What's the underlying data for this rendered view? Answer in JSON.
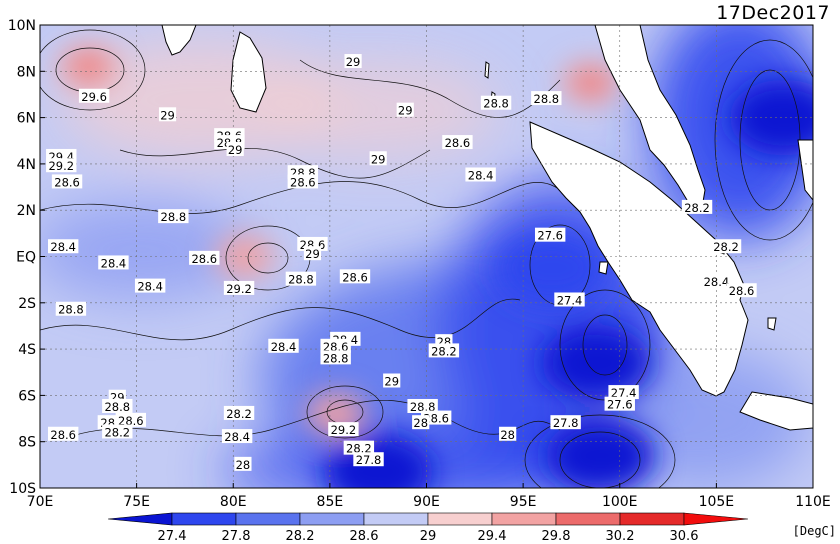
{
  "title": "17Dec2017",
  "unit_label": "[DegC]",
  "chart_data": {
    "type": "heatmap",
    "title": "17Dec2017",
    "xlabel": "",
    "ylabel": "",
    "xlim": [
      70,
      110
    ],
    "ylim": [
      -10,
      10
    ],
    "x_ticks": [
      "70E",
      "75E",
      "80E",
      "85E",
      "90E",
      "95E",
      "100E",
      "105E",
      "110E"
    ],
    "y_ticks": [
      "10N",
      "8N",
      "6N",
      "4N",
      "2N",
      "EQ",
      "2S",
      "4S",
      "6S",
      "8S",
      "10S"
    ],
    "grid": true,
    "colorbar": {
      "levels": [
        27.4,
        27.8,
        28.2,
        28.6,
        29,
        29.4,
        29.8,
        30.2,
        30.6
      ],
      "level_labels": [
        "27.4",
        "27.8",
        "28.2",
        "28.6",
        "29",
        "29.4",
        "29.8",
        "30.2",
        "30.6"
      ],
      "colors": [
        "#0a14d2",
        "#2e46ee",
        "#5a73ee",
        "#8d9ef2",
        "#c3cbf5",
        "#f7cfcf",
        "#f2a3a3",
        "#ec6b6b",
        "#e52a2a",
        "#f20d0d"
      ],
      "placement": "bottom"
    },
    "hot_spots": [
      {
        "lon": 72.5,
        "lat": 8.2,
        "value": 29.9
      },
      {
        "lon": 80.6,
        "lat": 0.0,
        "value": 29.6
      },
      {
        "lon": 85.3,
        "lat": -6.8,
        "value": 29.7
      },
      {
        "lon": 98.5,
        "lat": 7.5,
        "value": 29.8
      }
    ],
    "cold_spots": [
      {
        "lon": 99.0,
        "lat": -8.6,
        "value": 27.0
      },
      {
        "lon": 108.5,
        "lat": 6.0,
        "value": 27.2
      },
      {
        "lon": 98.8,
        "lat": -4.6,
        "value": 27.3
      },
      {
        "lon": 87.5,
        "lat": -9.3,
        "value": 27.3
      },
      {
        "lon": 96.5,
        "lat": -0.5,
        "value": 27.5
      }
    ],
    "contour_labels": [
      {
        "text": "29",
        "lon": 86.2,
        "lat": 8.4
      },
      {
        "text": "29.6",
        "lon": 72.8,
        "lat": 6.9
      },
      {
        "text": "29",
        "lon": 76.6,
        "lat": 6.1
      },
      {
        "text": "28.6",
        "lon": 79.8,
        "lat": 5.2
      },
      {
        "text": "28.8",
        "lon": 79.8,
        "lat": 4.9
      },
      {
        "text": "29",
        "lon": 80.1,
        "lat": 4.6
      },
      {
        "text": "29",
        "lon": 88.9,
        "lat": 6.3
      },
      {
        "text": "28.8",
        "lon": 93.6,
        "lat": 6.6
      },
      {
        "text": "28.8",
        "lon": 96.2,
        "lat": 6.8
      },
      {
        "text": "29.4",
        "lon": 71.1,
        "lat": 4.3
      },
      {
        "text": "29.2",
        "lon": 71.1,
        "lat": 3.9
      },
      {
        "text": "28.6",
        "lon": 71.4,
        "lat": 3.2
      },
      {
        "text": "29",
        "lon": 87.5,
        "lat": 4.2
      },
      {
        "text": "28.6",
        "lon": 91.6,
        "lat": 4.9
      },
      {
        "text": "28.8",
        "lon": 83.6,
        "lat": 3.6
      },
      {
        "text": "28.6",
        "lon": 83.6,
        "lat": 3.2
      },
      {
        "text": "28.4",
        "lon": 92.8,
        "lat": 3.5
      },
      {
        "text": "28.8",
        "lon": 76.9,
        "lat": 1.7
      },
      {
        "text": "28.2",
        "lon": 104.0,
        "lat": 2.1
      },
      {
        "text": "28.6",
        "lon": 84.1,
        "lat": 0.5
      },
      {
        "text": "29",
        "lon": 84.1,
        "lat": 0.1
      },
      {
        "text": "27.6",
        "lon": 96.4,
        "lat": 0.9
      },
      {
        "text": "28.4",
        "lon": 71.2,
        "lat": 0.4
      },
      {
        "text": "28.4",
        "lon": 73.8,
        "lat": -0.3
      },
      {
        "text": "28.6",
        "lon": 78.5,
        "lat": -0.1
      },
      {
        "text": "28.2",
        "lon": 105.5,
        "lat": 0.4
      },
      {
        "text": "28.8",
        "lon": 83.5,
        "lat": -1.0
      },
      {
        "text": "28.6",
        "lon": 86.3,
        "lat": -0.9
      },
      {
        "text": "28.4",
        "lon": 105.0,
        "lat": -1.1
      },
      {
        "text": "28.6",
        "lon": 106.3,
        "lat": -1.5
      },
      {
        "text": "29.2",
        "lon": 80.3,
        "lat": -1.4
      },
      {
        "text": "28.4",
        "lon": 75.7,
        "lat": -1.3
      },
      {
        "text": "28.8",
        "lon": 71.6,
        "lat": -2.3
      },
      {
        "text": "27.4",
        "lon": 97.4,
        "lat": -1.9
      },
      {
        "text": "28.4",
        "lon": 85.8,
        "lat": -3.6
      },
      {
        "text": "28.6",
        "lon": 85.3,
        "lat": -3.9
      },
      {
        "text": "28.8",
        "lon": 85.3,
        "lat": -4.4
      },
      {
        "text": "28.4",
        "lon": 82.6,
        "lat": -3.9
      },
      {
        "text": "28",
        "lon": 90.9,
        "lat": -3.7
      },
      {
        "text": "28.2",
        "lon": 90.9,
        "lat": -4.1
      },
      {
        "text": "29",
        "lon": 88.2,
        "lat": -5.4
      },
      {
        "text": "29",
        "lon": 74.0,
        "lat": -6.1
      },
      {
        "text": "28.8",
        "lon": 74.0,
        "lat": -6.5
      },
      {
        "text": "28.",
        "lon": 73.6,
        "lat": -7.2
      },
      {
        "text": "28.6",
        "lon": 74.7,
        "lat": -7.1
      },
      {
        "text": "28.2",
        "lon": 74.0,
        "lat": -7.6
      },
      {
        "text": "28.2",
        "lon": 80.3,
        "lat": -6.8
      },
      {
        "text": "28.8",
        "lon": 89.8,
        "lat": -6.5
      },
      {
        "text": "28.6",
        "lon": 90.5,
        "lat": -7.0
      },
      {
        "text": "28",
        "lon": 89.7,
        "lat": -7.2
      },
      {
        "text": "29.2",
        "lon": 85.7,
        "lat": -7.5
      },
      {
        "text": "28.2",
        "lon": 86.5,
        "lat": -8.3
      },
      {
        "text": "27.8",
        "lon": 87.0,
        "lat": -8.8
      },
      {
        "text": "28.4",
        "lon": 80.2,
        "lat": -7.8
      },
      {
        "text": "28.6",
        "lon": 71.2,
        "lat": -7.7
      },
      {
        "text": "28",
        "lon": 80.5,
        "lat": -9.0
      },
      {
        "text": "28",
        "lon": 94.2,
        "lat": -7.7
      },
      {
        "text": "27.8",
        "lon": 97.2,
        "lat": -7.2
      },
      {
        "text": "27.4",
        "lon": 100.2,
        "lat": -5.9
      },
      {
        "text": "27.6",
        "lon": 100.0,
        "lat": -6.4
      }
    ]
  }
}
